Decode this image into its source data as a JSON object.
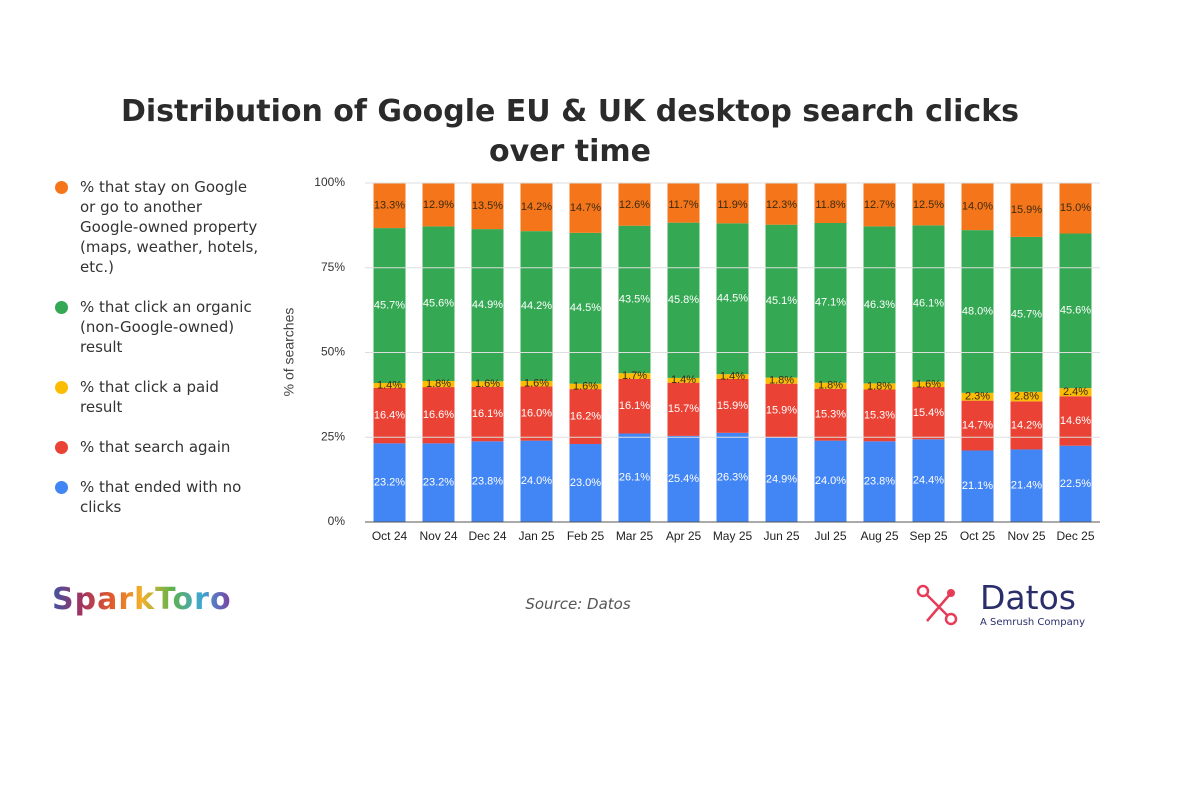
{
  "chart_data": {
    "type": "stacked_bar",
    "title": "Distribution of Google EU & UK desktop search clicks over time",
    "y_label": "% of searches",
    "source": "Source: Datos",
    "categories": [
      "Oct 24",
      "Nov 24",
      "Dec 24",
      "Jan 25",
      "Feb 25",
      "Mar 25",
      "Apr 25",
      "May 25",
      "Jun 25",
      "Jul 25",
      "Aug 25",
      "Sep 25",
      "Oct 25",
      "Nov 25",
      "Dec 25"
    ],
    "ylim": [
      0,
      100
    ],
    "yticks": [
      {
        "value": 0,
        "label": "0%"
      },
      {
        "value": 25,
        "label": "25%"
      },
      {
        "value": 50,
        "label": "50%"
      },
      {
        "value": 75,
        "label": "75%"
      },
      {
        "value": 100,
        "label": "100%"
      }
    ],
    "grid": true,
    "legend": "left",
    "series": [
      {
        "name": "% that stay on Google or go to another Google-owned property (maps, weather, hotels, etc.)",
        "color": "#f5761a",
        "values": [
          13.3,
          12.9,
          13.5,
          14.2,
          14.7,
          12.6,
          11.7,
          11.9,
          12.3,
          11.8,
          12.7,
          12.5,
          14.0,
          15.9,
          15.0
        ],
        "value_labels": [
          "13.3%",
          "12.9%",
          "13.5%",
          "14.2%",
          "14.7%",
          "12.6%",
          "11.7%",
          "11.9%",
          "12.3%",
          "11.8%",
          "12.7%",
          "12.5%",
          "14.0%",
          "15.9%",
          "15.0%"
        ]
      },
      {
        "name": "% that click an organic (non-Google-owned) result",
        "color": "#34a853",
        "values": [
          45.7,
          45.6,
          44.9,
          44.2,
          44.5,
          43.5,
          45.8,
          44.5,
          45.1,
          47.1,
          46.3,
          46.1,
          48.0,
          45.7,
          45.6
        ],
        "value_labels": [
          "45.7%",
          "45.6%",
          "44.9%",
          "44.2%",
          "44.5%",
          "43.5%",
          "45.8%",
          "44.5%",
          "45.1%",
          "47.1%",
          "46.3%",
          "46.1%",
          "48.0%",
          "45.7%",
          "45.6%"
        ]
      },
      {
        "name": "% that click a paid result",
        "color": "#fbbc04",
        "values": [
          1.4,
          1.8,
          1.6,
          1.6,
          1.6,
          1.7,
          1.4,
          1.4,
          1.8,
          1.8,
          1.8,
          1.6,
          2.3,
          2.8,
          2.4
        ],
        "value_labels": [
          "1.4%",
          "1.8%",
          "1.6%",
          "1.6%",
          "1.6%",
          "1.7%",
          "1.4%",
          "1.4%",
          "1.8%",
          "1.8%",
          "1.8%",
          "1.6%",
          "2.3%",
          "2.8%",
          "2.4%"
        ]
      },
      {
        "name": "% that search again",
        "color": "#ea4335",
        "values": [
          16.4,
          16.6,
          16.1,
          16.0,
          16.2,
          16.1,
          15.7,
          15.9,
          15.9,
          15.3,
          15.3,
          15.4,
          14.7,
          14.2,
          14.6
        ],
        "value_labels": [
          "16.4%",
          "16.6%",
          "16.1%",
          "16.0%",
          "16.2%",
          "16.1%",
          "15.7%",
          "15.9%",
          "15.9%",
          "15.3%",
          "15.3%",
          "15.4%",
          "14.7%",
          "14.2%",
          "14.6%"
        ]
      },
      {
        "name": "% that ended with no clicks",
        "color": "#4285f4",
        "values": [
          23.2,
          23.2,
          23.8,
          24.0,
          23.0,
          26.1,
          25.4,
          26.3,
          24.9,
          24.0,
          23.8,
          24.4,
          21.1,
          21.4,
          22.5
        ],
        "value_labels": [
          "23.2%",
          "23.2%",
          "23.8%",
          "24.0%",
          "23.0%",
          "26.1%",
          "25.4%",
          "26.3%",
          "24.9%",
          "24.0%",
          "23.8%",
          "24.4%",
          "21.1%",
          "21.4%",
          "22.5%"
        ]
      }
    ]
  },
  "branding": {
    "left": "SparkToro",
    "right": "Datos",
    "right_tagline": "A Semrush Company"
  }
}
